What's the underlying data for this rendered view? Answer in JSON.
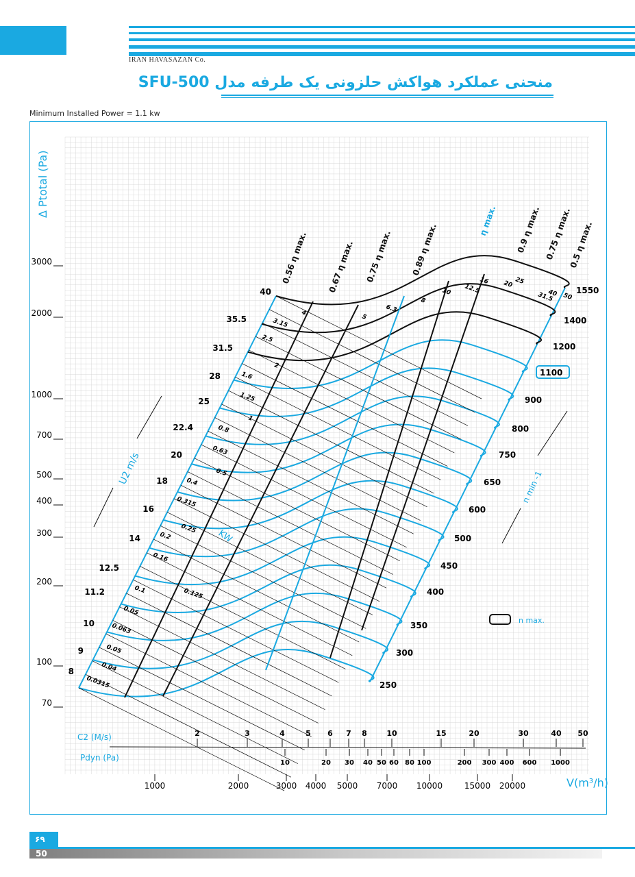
{
  "header": {
    "company": "IRAN HAVASAZAN Co.",
    "title": "منحنی عملکرد هواکش حلزونی یک طرفه مدل SFU-500"
  },
  "min_power_note": "Minimum Installed Power = 1.1 kw",
  "footer": {
    "badge": "۶۹",
    "page": "50"
  },
  "colors": {
    "accent": "#1aa9e1",
    "black": "#111111",
    "grid": "#d0d0d0"
  },
  "chart_data": {
    "type": "line",
    "title": "",
    "xlabel": "V(m³/h)",
    "ylabel": "Δ Ptotal (Pa)",
    "y_scale": "log",
    "x_scale": "log",
    "y_ticks": [
      3000,
      2000,
      1000,
      700,
      500,
      400,
      300,
      200,
      100,
      70
    ],
    "y_tick_labels": [
      "3000",
      "2000",
      "1000",
      "700",
      "500",
      "400",
      "300",
      "200",
      "100",
      "70"
    ],
    "x_ticks": [
      1000,
      2000,
      3000,
      4000,
      5000,
      7000,
      10000,
      15000,
      20000
    ],
    "x_tick_labels": [
      "1000",
      "2000",
      "3000",
      "4000",
      "5000",
      "7000",
      "10000",
      "15000",
      "20000"
    ],
    "c2_axis": {
      "label": "C2 (M/s)",
      "ticks": [
        "2",
        "3",
        "4",
        "5",
        "6",
        "7",
        "8",
        "10",
        "15",
        "20",
        "30",
        "40",
        "50"
      ]
    },
    "pdyn_axis": {
      "label": "Pdyn (Pa)",
      "ticks": [
        "10",
        "20",
        "30",
        "40",
        "50",
        "60",
        "80",
        "100",
        "200",
        "300",
        "400",
        "600",
        "1000"
      ]
    },
    "u2_label": "U2 m/s",
    "u2_values": [
      "40",
      "35.5",
      "31.5",
      "28",
      "25",
      "22.4",
      "20",
      "18",
      "16",
      "14",
      "12.5",
      "11.2",
      "10",
      "9",
      "8"
    ],
    "rpm_label": "n min -1",
    "rpm_values": [
      "1550",
      "1400",
      "1200",
      "1100",
      "900",
      "800",
      "750",
      "650",
      "600",
      "500",
      "450",
      "400",
      "350",
      "300",
      "250"
    ],
    "rpm_highlight": "1100",
    "power_label": "KW",
    "power_values": [
      "3.15",
      "2.5",
      "1.6",
      "1.25",
      "0.8",
      "0.63",
      "0.5",
      "0.4",
      "0.315",
      "0.25",
      "0.2",
      "0.16",
      "0.1",
      "0.05",
      "0.063",
      "0.05",
      "0.04",
      "0.0315",
      "4",
      "5",
      "6.3",
      "8",
      "10",
      "12.5",
      "16",
      "20",
      "25",
      "31.5",
      "40",
      "50",
      "2",
      "1",
      "0.125"
    ],
    "efficiency_labels": [
      "0.56 η max.",
      "0.67 η max.",
      "0.75 η max.",
      "0.89 η max.",
      "η max.",
      "0.9 η max.",
      "0.75 η max.",
      "0.5 η max."
    ],
    "legend": {
      "label": "n max."
    }
  }
}
